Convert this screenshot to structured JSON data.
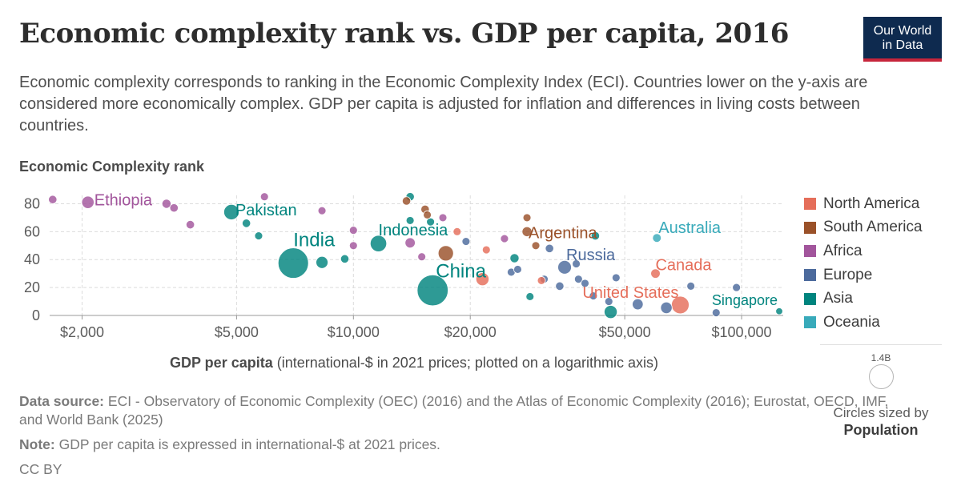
{
  "header": {
    "title": "Economic complexity rank vs. GDP per capita, 2016",
    "subtitle": "Economic complexity corresponds to ranking in the Economic Complexity Index (ECI). Countries lower on the y-axis are considered more economically complex. GDP per capita is adjusted for inflation and differences in living costs between countries.",
    "logo_line1": "Our World",
    "logo_line2": "in Data"
  },
  "colors": {
    "North America": "#e56e5a",
    "South America": "#9a5129",
    "Africa": "#a2559c",
    "Europe": "#4c6a9c",
    "Asia": "#00847e",
    "Oceania": "#38aaba"
  },
  "legend": {
    "items": [
      "North America",
      "South America",
      "Africa",
      "Europe",
      "Asia",
      "Oceania"
    ],
    "size_value": "1.4B",
    "size_caption": "Circles sized by",
    "size_variable": "Population"
  },
  "footer": {
    "source_label": "Data source:",
    "source_text": "ECI - Observatory of Economic Complexity (OEC) (2016) and the Atlas of Economic Complexity (2016); Eurostat, OECD, IMF, and World Bank (2025)",
    "note_label": "Note:",
    "note_text": "GDP per capita is expressed in international-$ at 2021 prices.",
    "license": "CC BY"
  },
  "chart_data": {
    "type": "scatter",
    "title": "Economic complexity rank vs. GDP per capita, 2016",
    "ylabel": "Economic Complexity rank",
    "xlabel_bold": "GDP per capita",
    "xlabel_rest": "(international-$ in 2021 prices; plotted on a logarithmic axis)",
    "x_scale": "log",
    "xlim": [
      1650,
      128000
    ],
    "ylim": [
      0,
      86
    ],
    "x_ticks": [
      {
        "value": 2000,
        "label": "$2,000"
      },
      {
        "value": 5000,
        "label": "$5,000"
      },
      {
        "value": 10000,
        "label": "$10,000"
      },
      {
        "value": 20000,
        "label": "$20,000"
      },
      {
        "value": 50000,
        "label": "$50,000"
      },
      {
        "value": 100000,
        "label": "$100,000"
      }
    ],
    "y_ticks": [
      0,
      20,
      40,
      60,
      80
    ],
    "grid": true,
    "legend_position": "right",
    "points": [
      {
        "name": "Ethiopia",
        "region": "Africa",
        "x": 2070,
        "y": 81,
        "pop": 0.105,
        "label": "Ethiopia"
      },
      {
        "name": "",
        "region": "Africa",
        "x": 1680,
        "y": 83,
        "pop": 0.02
      },
      {
        "name": "",
        "region": "Africa",
        "x": 3300,
        "y": 80,
        "pop": 0.03
      },
      {
        "name": "",
        "region": "Africa",
        "x": 3450,
        "y": 77,
        "pop": 0.02
      },
      {
        "name": "",
        "region": "Africa",
        "x": 3800,
        "y": 65,
        "pop": 0.02
      },
      {
        "name": "",
        "region": "Africa",
        "x": 5900,
        "y": 85,
        "pop": 0.015
      },
      {
        "name": "",
        "region": "Africa",
        "x": 8300,
        "y": 75,
        "pop": 0.015
      },
      {
        "name": "",
        "region": "Africa",
        "x": 10000,
        "y": 61,
        "pop": 0.015
      },
      {
        "name": "",
        "region": "Africa",
        "x": 10000,
        "y": 50,
        "pop": 0.015
      },
      {
        "name": "",
        "region": "Africa",
        "x": 14000,
        "y": 52,
        "pop": 0.05
      },
      {
        "name": "",
        "region": "Africa",
        "x": 15000,
        "y": 42,
        "pop": 0.015
      },
      {
        "name": "",
        "region": "Africa",
        "x": 17000,
        "y": 70,
        "pop": 0.015
      },
      {
        "name": "",
        "region": "Africa",
        "x": 24500,
        "y": 55,
        "pop": 0.015
      },
      {
        "name": "Pakistan",
        "region": "Asia",
        "x": 4850,
        "y": 74,
        "pop": 0.21,
        "label": "Pakistan"
      },
      {
        "name": "",
        "region": "Asia",
        "x": 5300,
        "y": 66,
        "pop": 0.02
      },
      {
        "name": "",
        "region": "Asia",
        "x": 5700,
        "y": 57,
        "pop": 0.015
      },
      {
        "name": "India",
        "region": "Asia",
        "x": 7000,
        "y": 37.5,
        "pop": 1.32,
        "label": "India"
      },
      {
        "name": "",
        "region": "Asia",
        "x": 8300,
        "y": 38,
        "pop": 0.095
      },
      {
        "name": "",
        "region": "Asia",
        "x": 9500,
        "y": 40.5,
        "pop": 0.02
      },
      {
        "name": "Indonesia",
        "region": "Asia",
        "x": 11600,
        "y": 51.5,
        "pop": 0.26,
        "label": "Indonesia"
      },
      {
        "name": "",
        "region": "Asia",
        "x": 14000,
        "y": 85,
        "pop": 0.02
      },
      {
        "name": "",
        "region": "Asia",
        "x": 14000,
        "y": 68,
        "pop": 0.015
      },
      {
        "name": "",
        "region": "Asia",
        "x": 15800,
        "y": 67,
        "pop": 0.015
      },
      {
        "name": "China",
        "region": "Asia",
        "x": 16000,
        "y": 18,
        "pop": 1.38,
        "label": "China"
      },
      {
        "name": "",
        "region": "Asia",
        "x": 26000,
        "y": 41,
        "pop": 0.03
      },
      {
        "name": "",
        "region": "Asia",
        "x": 28500,
        "y": 13.5,
        "pop": 0.015
      },
      {
        "name": "",
        "region": "Asia",
        "x": 42000,
        "y": 57,
        "pop": 0.02
      },
      {
        "name": "",
        "region": "Asia",
        "x": 46000,
        "y": 2.5,
        "pop": 0.125
      },
      {
        "name": "Singapore",
        "region": "Asia",
        "x": 125000,
        "y": 3,
        "pop": 0.0056,
        "label": "Singapore"
      },
      {
        "name": "Argentina",
        "region": "South America",
        "x": 28000,
        "y": 60,
        "pop": 0.044,
        "label": "Argentina"
      },
      {
        "name": "",
        "region": "South America",
        "x": 13700,
        "y": 82,
        "pop": 0.02
      },
      {
        "name": "",
        "region": "South America",
        "x": 15300,
        "y": 76,
        "pop": 0.02
      },
      {
        "name": "",
        "region": "South America",
        "x": 15500,
        "y": 72,
        "pop": 0.015
      },
      {
        "name": "",
        "region": "South America",
        "x": 17300,
        "y": 44.5,
        "pop": 0.21
      },
      {
        "name": "",
        "region": "South America",
        "x": 28000,
        "y": 70,
        "pop": 0.015
      },
      {
        "name": "",
        "region": "South America",
        "x": 29500,
        "y": 50,
        "pop": 0.015
      },
      {
        "name": "Russia",
        "region": "Europe",
        "x": 35000,
        "y": 34.5,
        "pop": 0.144,
        "label": "Russia"
      },
      {
        "name": "",
        "region": "Europe",
        "x": 19500,
        "y": 53,
        "pop": 0.015
      },
      {
        "name": "",
        "region": "Europe",
        "x": 25500,
        "y": 31,
        "pop": 0.015
      },
      {
        "name": "",
        "region": "Europe",
        "x": 26500,
        "y": 33,
        "pop": 0.015
      },
      {
        "name": "",
        "region": "Europe",
        "x": 31000,
        "y": 26,
        "pop": 0.015
      },
      {
        "name": "",
        "region": "Europe",
        "x": 32000,
        "y": 48,
        "pop": 0.02
      },
      {
        "name": "",
        "region": "Europe",
        "x": 34000,
        "y": 21,
        "pop": 0.02
      },
      {
        "name": "",
        "region": "Europe",
        "x": 37500,
        "y": 37,
        "pop": 0.015
      },
      {
        "name": "",
        "region": "Europe",
        "x": 38000,
        "y": 26,
        "pop": 0.015
      },
      {
        "name": "",
        "region": "Europe",
        "x": 39500,
        "y": 23,
        "pop": 0.015
      },
      {
        "name": "",
        "region": "Europe",
        "x": 41500,
        "y": 14,
        "pop": 0.015
      },
      {
        "name": "",
        "region": "Europe",
        "x": 47500,
        "y": 27,
        "pop": 0.015
      },
      {
        "name": "",
        "region": "Europe",
        "x": 45500,
        "y": 10,
        "pop": 0.015
      },
      {
        "name": "",
        "region": "Europe",
        "x": 54000,
        "y": 8,
        "pop": 0.066
      },
      {
        "name": "",
        "region": "Europe",
        "x": 64000,
        "y": 5.5,
        "pop": 0.082
      },
      {
        "name": "",
        "region": "Europe",
        "x": 74000,
        "y": 21,
        "pop": 0.015
      },
      {
        "name": "",
        "region": "Europe",
        "x": 97000,
        "y": 20,
        "pop": 0.015
      },
      {
        "name": "",
        "region": "Europe",
        "x": 86000,
        "y": 2,
        "pop": 0.015
      },
      {
        "name": "United States",
        "region": "North America",
        "x": 69500,
        "y": 7.5,
        "pop": 0.32,
        "label": "United States"
      },
      {
        "name": "Canada",
        "region": "North America",
        "x": 60000,
        "y": 30,
        "pop": 0.036,
        "label": "Canada"
      },
      {
        "name": "",
        "region": "North America",
        "x": 21500,
        "y": 26,
        "pop": 0.127
      },
      {
        "name": "",
        "region": "North America",
        "x": 22000,
        "y": 47,
        "pop": 0.015
      },
      {
        "name": "",
        "region": "North America",
        "x": 18500,
        "y": 60,
        "pop": 0.015
      },
      {
        "name": "",
        "region": "North America",
        "x": 30500,
        "y": 25,
        "pop": 0.015
      },
      {
        "name": "Australia",
        "region": "Oceania",
        "x": 60500,
        "y": 55.5,
        "pop": 0.024,
        "label": "Australia"
      }
    ]
  }
}
